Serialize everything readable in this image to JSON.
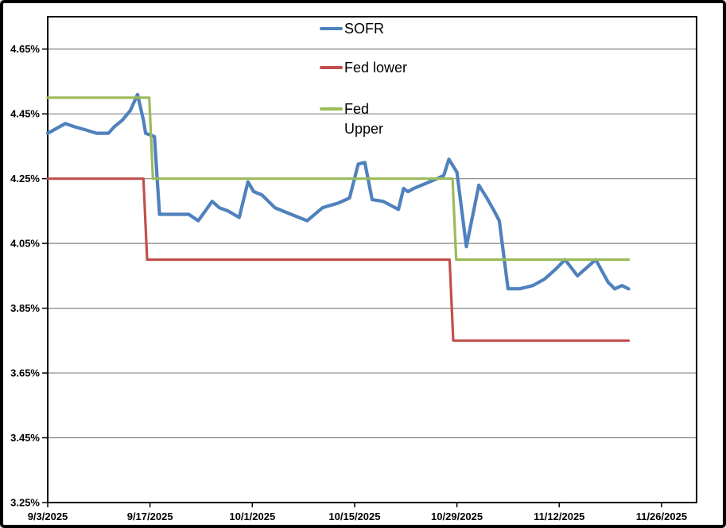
{
  "chart_data": {
    "type": "line",
    "title": "",
    "xlabel": "",
    "ylabel": "",
    "grid": "horizontal-only",
    "legend_position": "top-center-inside",
    "x_axis": {
      "unit": "days-since-first-date",
      "first_date": "9/3/2025",
      "tick_labels": [
        "9/3/2025",
        "9/17/2025",
        "10/1/2025",
        "10/15/2025",
        "10/29/2025",
        "11/12/2025",
        "11/26/2025"
      ],
      "tick_days": [
        0,
        14,
        28,
        42,
        56,
        70,
        84
      ],
      "domain": [
        0,
        88.8
      ]
    },
    "y_axis": {
      "tick_labels": [
        "3.25%",
        "3.45%",
        "3.65%",
        "3.85%",
        "4.05%",
        "4.25%",
        "4.45%",
        "4.65%"
      ],
      "tick_values": [
        3.25,
        3.45,
        3.65,
        3.85,
        4.05,
        4.25,
        4.45,
        4.65
      ],
      "range": [
        3.25,
        4.75
      ]
    },
    "series": [
      {
        "name": "SOFR",
        "color": "#4F81BD",
        "stroke_width": 4.2,
        "points": [
          [
            0,
            4.39
          ],
          [
            2.4,
            4.42
          ],
          [
            3.7,
            4.41
          ],
          [
            5.3,
            4.4
          ],
          [
            6.7,
            4.39
          ],
          [
            8.3,
            4.39
          ],
          [
            9.1,
            4.41
          ],
          [
            10.2,
            4.43
          ],
          [
            11.3,
            4.46
          ],
          [
            12.3,
            4.51
          ],
          [
            13.1,
            4.43
          ],
          [
            13.4,
            4.39
          ],
          [
            14.6,
            4.38
          ],
          [
            15.3,
            4.14
          ],
          [
            19.3,
            4.14
          ],
          [
            20.6,
            4.12
          ],
          [
            22.5,
            4.18
          ],
          [
            23.5,
            4.16
          ],
          [
            24.7,
            4.15
          ],
          [
            26.2,
            4.13
          ],
          [
            27.4,
            4.24
          ],
          [
            28.2,
            4.21
          ],
          [
            29.3,
            4.2
          ],
          [
            31.1,
            4.16
          ],
          [
            33.3,
            4.14
          ],
          [
            35.5,
            4.12
          ],
          [
            37.6,
            4.16
          ],
          [
            39.8,
            4.175
          ],
          [
            41.3,
            4.19
          ],
          [
            42.5,
            4.295
          ],
          [
            43.4,
            4.3
          ],
          [
            44.4,
            4.185
          ],
          [
            45.9,
            4.18
          ],
          [
            48.0,
            4.155
          ],
          [
            48.7,
            4.22
          ],
          [
            49.3,
            4.21
          ],
          [
            50.1,
            4.22
          ],
          [
            51.7,
            4.235
          ],
          [
            53.3,
            4.25
          ],
          [
            54.2,
            4.26
          ],
          [
            54.9,
            4.31
          ],
          [
            56.0,
            4.27
          ],
          [
            57.3,
            4.04
          ],
          [
            59.0,
            4.23
          ],
          [
            60.1,
            4.19
          ],
          [
            61.1,
            4.15
          ],
          [
            61.8,
            4.12
          ],
          [
            63.0,
            3.91
          ],
          [
            64.6,
            3.91
          ],
          [
            66.4,
            3.92
          ],
          [
            68.0,
            3.94
          ],
          [
            69.5,
            3.97
          ],
          [
            70.8,
            4.0
          ],
          [
            72.5,
            3.95
          ],
          [
            75.0,
            4.0
          ],
          [
            76.7,
            3.93
          ],
          [
            77.6,
            3.91
          ],
          [
            78.6,
            3.92
          ],
          [
            79.5,
            3.91
          ]
        ]
      },
      {
        "name": "Fed lower",
        "color": "#C0504D",
        "stroke_width": 3.2,
        "points": [
          [
            0,
            4.25
          ],
          [
            13.1,
            4.25
          ],
          [
            13.6,
            4.0
          ],
          [
            55.0,
            4.0
          ],
          [
            55.5,
            3.75
          ],
          [
            79.5,
            3.75
          ]
        ]
      },
      {
        "name": "Fed Upper",
        "color": "#9BBB59",
        "stroke_width": 3.2,
        "points": [
          [
            0,
            4.5
          ],
          [
            13.9,
            4.5
          ],
          [
            14.4,
            4.25
          ],
          [
            55.4,
            4.25
          ],
          [
            55.9,
            4.0
          ],
          [
            79.5,
            4.0
          ]
        ]
      }
    ]
  },
  "legend": {
    "items": [
      {
        "label": "SOFR",
        "color": "#4F81BD"
      },
      {
        "label": "Fed lower",
        "color": "#C0504D"
      },
      {
        "label": "Fed\nUpper",
        "color": "#9BBB59"
      }
    ]
  },
  "colors": {
    "background": "#FFFFFF",
    "plot_border": "#000000",
    "gridline": "#848484",
    "tick_label": "#000000",
    "outer_frame": "#000000"
  }
}
